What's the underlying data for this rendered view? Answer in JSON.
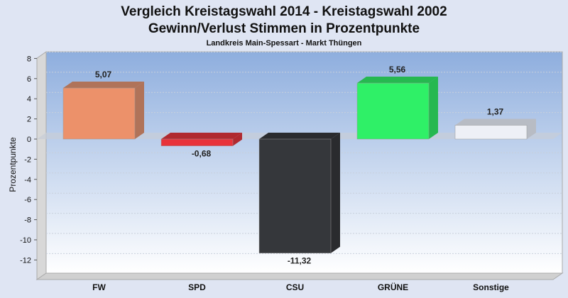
{
  "chart_data": {
    "type": "bar",
    "title": "Vergleich Kreistagswahl 2014 - Kreistagswahl 2002",
    "subtitle": "Gewinn/Verlust Stimmen in Prozentpunkte",
    "subtitle2": "Landkreis Main-Spessart - Markt Thüngen",
    "xlabel": "",
    "ylabel": "Prozentpunkte",
    "ylim": [
      -12,
      8
    ],
    "yticks": [
      "8",
      "6",
      "4",
      "2",
      "0",
      "-2",
      "-4",
      "-6",
      "-8",
      "-10",
      "-12"
    ],
    "categories": [
      "FW",
      "SPD",
      "CSU",
      "GRÜNE",
      "Sonstige"
    ],
    "values": [
      5.07,
      -0.68,
      -11.32,
      5.56,
      1.37
    ],
    "labels": [
      "5,07",
      "-0,68",
      "-11,32",
      "5,56",
      "1,37"
    ],
    "colors": [
      "#ec916a",
      "#e8333a",
      "#35373b",
      "#2ff067",
      "#eef0f6"
    ],
    "side_colors": [
      "#b07359",
      "#b02a30",
      "#2a2b2e",
      "#26b850",
      "#b8bcc4"
    ],
    "grid": true
  }
}
